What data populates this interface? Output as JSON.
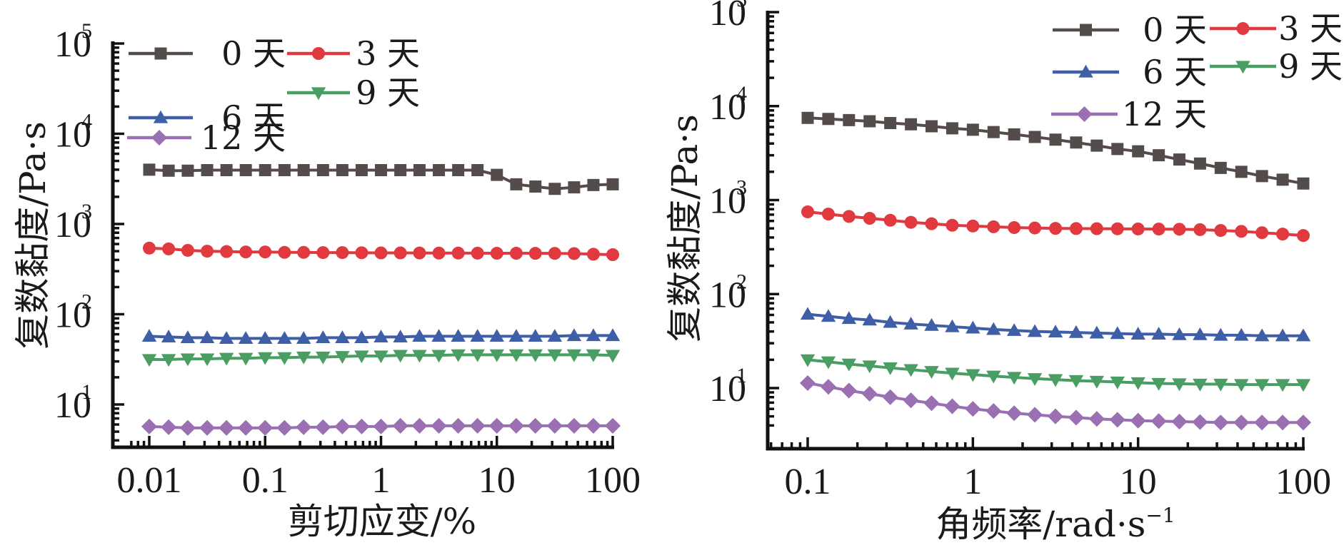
{
  "chart_data": [
    {
      "type": "line",
      "title": "",
      "xlabel": "剪切应变/%",
      "ylabel": "复数黏度/Pa·s",
      "xscale": "log",
      "yscale": "log",
      "xlim": [
        0.0065,
        100
      ],
      "ylim": [
        3.4,
        100000
      ],
      "xticks": [
        {
          "value": 0.01,
          "label": "0.01"
        },
        {
          "value": 0.1,
          "label": "0.1"
        },
        {
          "value": 1,
          "label": "1"
        },
        {
          "value": 10,
          "label": "10"
        },
        {
          "value": 100,
          "label": "100"
        }
      ],
      "yticks": [
        {
          "value": 10,
          "base": "10",
          "exp": "1"
        },
        {
          "value": 100,
          "base": "10",
          "exp": "2"
        },
        {
          "value": 1000,
          "base": "10",
          "exp": "3"
        },
        {
          "value": 10000,
          "base": "10",
          "exp": "4"
        },
        {
          "value": 100000,
          "base": "10",
          "exp": "5"
        }
      ],
      "grid": false,
      "legend_position": "top-left",
      "x": [
        0.01,
        0.0147,
        0.0215,
        0.0316,
        0.0464,
        0.0681,
        0.1,
        0.147,
        0.215,
        0.316,
        0.464,
        0.681,
        1,
        1.47,
        2.15,
        3.16,
        4.64,
        6.81,
        10,
        14.7,
        21.5,
        31.6,
        46.4,
        68.1,
        100
      ],
      "series": [
        {
          "name": "0 天",
          "marker": "square",
          "color": "#544c4a",
          "values": [
            4000,
            3900,
            3900,
            3950,
            3950,
            3950,
            3950,
            3950,
            3950,
            3950,
            3950,
            3950,
            3950,
            3950,
            3950,
            3950,
            3950,
            3950,
            3500,
            2750,
            2600,
            2450,
            2550,
            2700,
            2750
          ]
        },
        {
          "name": "3 天",
          "marker": "circle",
          "color": "#e0393f",
          "values": [
            540,
            530,
            510,
            500,
            495,
            490,
            490,
            485,
            485,
            482,
            482,
            480,
            478,
            478,
            477,
            476,
            476,
            475,
            474,
            474,
            473,
            472,
            470,
            462,
            457
          ]
        },
        {
          "name": "6 天",
          "marker": "triangle-up",
          "color": "#3f5ea8",
          "values": [
            57,
            56,
            55,
            55,
            54,
            54,
            54,
            54,
            54,
            55,
            55,
            55,
            56,
            56,
            57,
            57,
            57,
            57,
            57,
            57,
            57,
            57,
            58,
            58,
            58
          ]
        },
        {
          "name": "9 天",
          "marker": "triangle-down",
          "color": "#4b9e63",
          "values": [
            31.5,
            31.5,
            32,
            32,
            32.5,
            32.5,
            33,
            33,
            33.5,
            33.5,
            34,
            34.5,
            34.5,
            35,
            35,
            35,
            35.5,
            35.5,
            35.5,
            35.5,
            35.5,
            35.5,
            35.5,
            35.5,
            35
          ]
        },
        {
          "name": "12 天",
          "marker": "diamond",
          "color": "#9a70b2",
          "values": [
            5.7,
            5.6,
            5.5,
            5.5,
            5.5,
            5.5,
            5.5,
            5.5,
            5.6,
            5.6,
            5.7,
            5.7,
            5.7,
            5.8,
            5.8,
            5.8,
            5.8,
            5.8,
            5.8,
            5.8,
            5.8,
            5.8,
            5.8,
            5.8,
            5.8
          ]
        }
      ]
    },
    {
      "type": "line",
      "title": "",
      "xlabel": "角频率/rad·s",
      "xlabel_exp": "−1",
      "ylabel": "复数黏度/Pa·s",
      "xscale": "log",
      "yscale": "log",
      "xlim": [
        0.052,
        100
      ],
      "ylim": [
        3.1,
        100000
      ],
      "xticks": [
        {
          "value": 0.1,
          "label": "0.1"
        },
        {
          "value": 1,
          "label": "1"
        },
        {
          "value": 10,
          "label": "10"
        },
        {
          "value": 100,
          "label": "100"
        }
      ],
      "yticks": [
        {
          "value": 10,
          "base": "10",
          "exp": "1"
        },
        {
          "value": 100,
          "base": "10",
          "exp": "2"
        },
        {
          "value": 1000,
          "base": "10",
          "exp": "3"
        },
        {
          "value": 10000,
          "base": "10",
          "exp": "4"
        },
        {
          "value": 100000,
          "base": "10",
          "exp": "5"
        }
      ],
      "grid": false,
      "legend_position": "top-right",
      "x": [
        0.1,
        0.1334,
        0.1778,
        0.2371,
        0.3162,
        0.4217,
        0.5623,
        0.7499,
        1,
        1.334,
        1.778,
        2.371,
        3.162,
        4.217,
        5.623,
        7.499,
        10,
        13.34,
        17.78,
        23.71,
        31.62,
        42.17,
        56.23,
        74.99,
        100
      ],
      "series": [
        {
          "name": "0 天",
          "marker": "square",
          "color": "#544c4a",
          "values": [
            7500,
            7300,
            7100,
            6900,
            6600,
            6400,
            6100,
            5800,
            5600,
            5300,
            5000,
            4700,
            4400,
            4100,
            3800,
            3500,
            3300,
            3000,
            2700,
            2450,
            2200,
            2000,
            1800,
            1650,
            1500
          ]
        },
        {
          "name": "3 天",
          "marker": "circle",
          "color": "#e0393f",
          "values": [
            750,
            710,
            670,
            640,
            610,
            580,
            560,
            540,
            530,
            520,
            510,
            505,
            500,
            498,
            496,
            495,
            493,
            492,
            490,
            485,
            475,
            465,
            450,
            435,
            420
          ]
        },
        {
          "name": "6 天",
          "marker": "triangle-up",
          "color": "#3f5ea8",
          "values": [
            61,
            58,
            55,
            53,
            50,
            48,
            46.5,
            45,
            43.5,
            42,
            41,
            40,
            39.5,
            39,
            38.5,
            38,
            37.5,
            37.5,
            37,
            37,
            36.5,
            36.5,
            36,
            36,
            36
          ]
        },
        {
          "name": "9 天",
          "marker": "triangle-down",
          "color": "#4b9e63",
          "values": [
            20,
            19,
            18,
            17.2,
            16.4,
            15.7,
            15,
            14.4,
            13.9,
            13.4,
            13,
            12.6,
            12.3,
            12,
            11.8,
            11.6,
            11.4,
            11.2,
            11.1,
            11,
            11,
            10.9,
            10.9,
            10.9,
            10.9
          ]
        },
        {
          "name": "12 天",
          "marker": "diamond",
          "color": "#9a70b2",
          "values": [
            11.3,
            10.3,
            9.4,
            8.7,
            8.0,
            7.4,
            6.9,
            6.4,
            6.0,
            5.7,
            5.4,
            5.2,
            5.0,
            4.85,
            4.7,
            4.6,
            4.5,
            4.45,
            4.4,
            4.35,
            4.3,
            4.3,
            4.3,
            4.3,
            4.3
          ]
        }
      ]
    }
  ]
}
